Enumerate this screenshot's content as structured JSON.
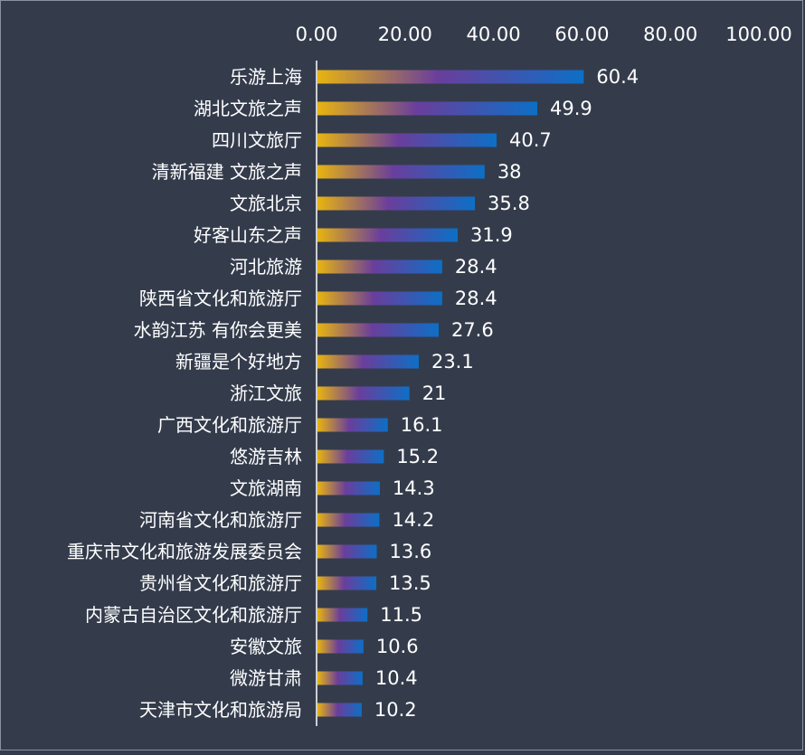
{
  "chart_data": {
    "type": "bar",
    "orientation": "horizontal",
    "title": "",
    "xlabel": "",
    "ylabel": "",
    "xlim": [
      0,
      100
    ],
    "x_axis_position": "top",
    "x_ticks": [
      "0.00",
      "20.00",
      "40.00",
      "60.00",
      "80.00",
      "100.00"
    ],
    "grid": false,
    "legend": "none",
    "bar_gradient": [
      "#e8b410",
      "#6a3e9c",
      "#0d6fc6"
    ],
    "categories": [
      "乐游上海",
      "湖北文旅之声",
      "四川文旅厅",
      "清新福建 文旅之声",
      "文旅北京",
      "好客山东之声",
      "河北旅游",
      "陕西省文化和旅游厅",
      "水韵江苏 有你会更美",
      "新疆是个好地方",
      "浙江文旅",
      "广西文化和旅游厅",
      "悠游吉林",
      "文旅湖南",
      "河南省文化和旅游厅",
      "重庆市文化和旅游发展委员会",
      "贵州省文化和旅游厅",
      "内蒙古自治区文化和旅游厅",
      "安徽文旅",
      "微游甘肃",
      "天津市文化和旅游局"
    ],
    "values": [
      60.4,
      49.9,
      40.7,
      38,
      35.8,
      31.9,
      28.4,
      28.4,
      27.6,
      23.1,
      21,
      16.1,
      15.2,
      14.3,
      14.2,
      13.6,
      13.5,
      11.5,
      10.6,
      10.4,
      10.2
    ],
    "value_labels": [
      "60.4",
      "49.9",
      "40.7",
      "38",
      "35.8",
      "31.9",
      "28.4",
      "28.4",
      "27.6",
      "23.1",
      "21",
      "16.1",
      "15.2",
      "14.3",
      "14.2",
      "13.6",
      "13.5",
      "11.5",
      "10.6",
      "10.4",
      "10.2"
    ]
  }
}
